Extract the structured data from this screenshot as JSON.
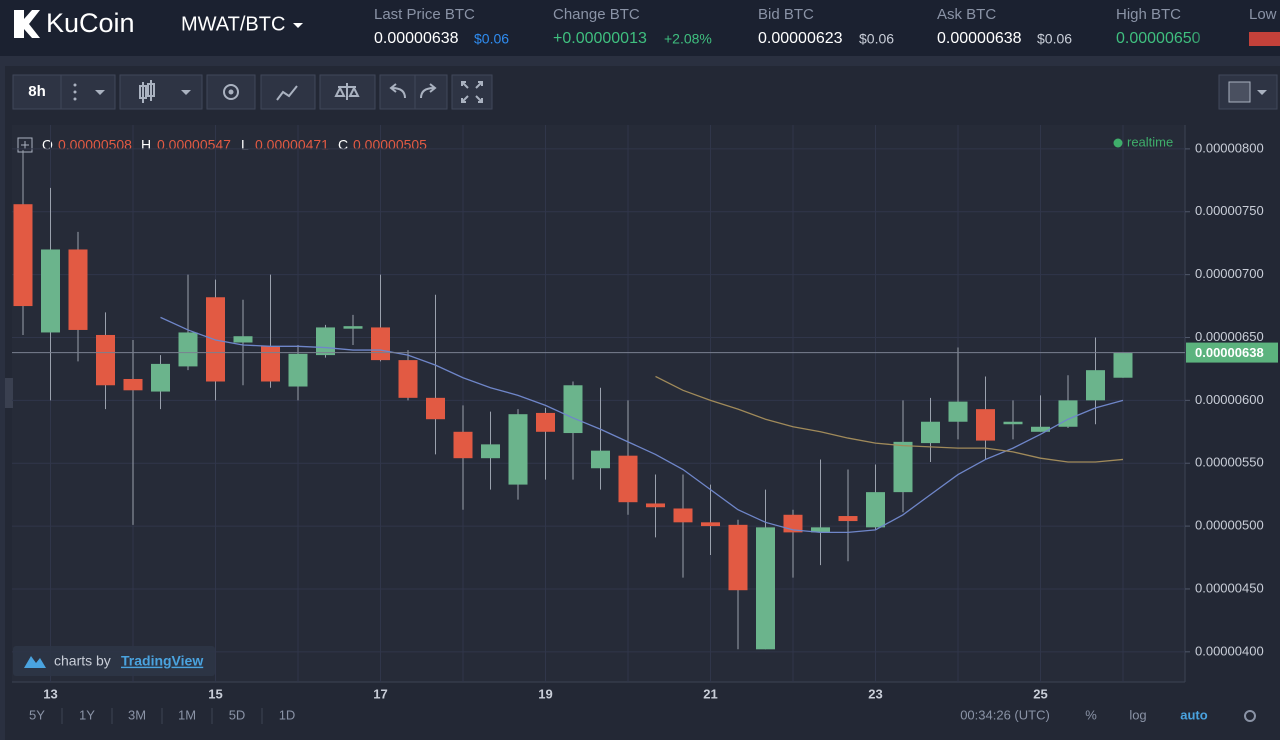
{
  "header": {
    "logo": "KuCoin",
    "pair": "MWAT/BTC",
    "stats": [
      {
        "label": "Last Price BTC",
        "value": "0.00000638",
        "sub": "$0.06"
      },
      {
        "label": "Change BTC",
        "value": "+0.00000013",
        "sub": "+2.08%"
      },
      {
        "label": "Bid BTC",
        "value": "0.00000623",
        "sub": "$0.06"
      },
      {
        "label": "Ask BTC",
        "value": "0.00000638",
        "sub": "$0.06"
      },
      {
        "label": "High BTC",
        "value": "0.00000650"
      },
      {
        "label": "Low"
      }
    ]
  },
  "toolbar": {
    "interval": "8h"
  },
  "legend": {
    "o_label": "O",
    "o": "0.00000508",
    "h_label": "H",
    "h": "0.00000547",
    "l_label": "L",
    "l": "0.00000471",
    "c_label": "C",
    "c": "0.00000505",
    "status": "realtime"
  },
  "branding": {
    "prefix": "charts by",
    "name": "TradingView"
  },
  "bottom_bar": {
    "ranges": [
      "5Y",
      "1Y",
      "3M",
      "1M",
      "5D",
      "1D"
    ],
    "time": "00:34:26 (UTC)",
    "percent": "%",
    "log": "log",
    "auto": "auto"
  },
  "chart_data": {
    "type": "candlestick",
    "x_labels": [
      "13",
      "15",
      "17",
      "19",
      "21",
      "23",
      "25"
    ],
    "open": [
      7.56e-06,
      6.54e-06,
      7.2e-06,
      6.52e-06,
      6.17e-06,
      6.07e-06,
      6.27e-06,
      6.82e-06,
      6.46e-06,
      6.43e-06,
      6.11e-06,
      6.36e-06,
      6.57e-06,
      6.58e-06,
      6.32e-06,
      6.02e-06,
      5.75e-06,
      5.54e-06,
      5.33e-06,
      5.9e-06,
      5.74e-06,
      5.46e-06,
      5.56e-06,
      5.18e-06,
      5.14e-06,
      5.03e-06,
      5.01e-06,
      4.02e-06,
      5.09e-06,
      4.95e-06,
      5.08e-06,
      4.99e-06,
      5.27e-06,
      5.66e-06,
      5.83e-06,
      5.93e-06,
      5.81e-06,
      5.75e-06,
      5.79e-06,
      6e-06,
      6.18e-06
    ],
    "high": [
      7.99e-06,
      7.69e-06,
      7.34e-06,
      6.7e-06,
      6.48e-06,
      6.36e-06,
      7e-06,
      6.96e-06,
      6.8e-06,
      7e-06,
      6.44e-06,
      6.6e-06,
      6.68e-06,
      7e-06,
      6.4e-06,
      6.84e-06,
      5.96e-06,
      5.91e-06,
      5.93e-06,
      5.94e-06,
      6.15e-06,
      6.1e-06,
      6e-06,
      5.41e-06,
      5.41e-06,
      5.33e-06,
      5.05e-06,
      5.29e-06,
      5.13e-06,
      5.53e-06,
      5.45e-06,
      5.49e-06,
      6e-06,
      6.02e-06,
      6.42e-06,
      6.19e-06,
      6e-06,
      6.04e-06,
      6.2e-06,
      6.5e-06,
      6.38e-06
    ],
    "low": [
      6.52e-06,
      6e-06,
      6.31e-06,
      5.93e-06,
      5.01e-06,
      5.93e-06,
      6.24e-06,
      6e-06,
      6.12e-06,
      6.1e-06,
      6e-06,
      6.34e-06,
      6.44e-06,
      6.31e-06,
      6e-06,
      5.57e-06,
      5.13e-06,
      5.29e-06,
      5.21e-06,
      5.37e-06,
      5.37e-06,
      5.29e-06,
      5.09e-06,
      4.91e-06,
      4.59e-06,
      4.77e-06,
      4.02e-06,
      4.02e-06,
      4.59e-06,
      4.69e-06,
      4.72e-06,
      4.97e-06,
      5.11e-06,
      5.51e-06,
      5.69e-06,
      5.53e-06,
      5.69e-06,
      5.75e-06,
      5.78e-06,
      5.81e-06,
      6.18e-06
    ],
    "close": [
      6.75e-06,
      7.2e-06,
      6.56e-06,
      6.12e-06,
      6.08e-06,
      6.29e-06,
      6.54e-06,
      6.15e-06,
      6.51e-06,
      6.15e-06,
      6.37e-06,
      6.58e-06,
      6.59e-06,
      6.32e-06,
      6.02e-06,
      5.85e-06,
      5.54e-06,
      5.65e-06,
      5.89e-06,
      5.75e-06,
      6.12e-06,
      5.6e-06,
      5.19e-06,
      5.15e-06,
      5.03e-06,
      5e-06,
      4.49e-06,
      4.99e-06,
      4.95e-06,
      4.99e-06,
      5.04e-06,
      5.27e-06,
      5.67e-06,
      5.83e-06,
      5.99e-06,
      5.68e-06,
      5.83e-06,
      5.79e-06,
      6e-06,
      6.24e-06,
      6.38e-06
    ],
    "up_color": "#6bb48c",
    "down_color": "#e25a43",
    "lines": [
      {
        "color": "#6f86c9",
        "values": [
          null,
          null,
          null,
          null,
          null,
          6.66e-06,
          6.56e-06,
          6.48e-06,
          6.44e-06,
          6.43e-06,
          6.43e-06,
          6.42e-06,
          6.4e-06,
          6.4e-06,
          6.36e-06,
          6.28e-06,
          6.18e-06,
          6.1e-06,
          6.04e-06,
          5.96e-06,
          5.86e-06,
          5.77e-06,
          5.67e-06,
          5.57e-06,
          5.45e-06,
          5.29e-06,
          5.13e-06,
          5.03e-06,
          4.97e-06,
          4.95e-06,
          4.95e-06,
          4.97e-06,
          5.09e-06,
          5.25e-06,
          5.41e-06,
          5.53e-06,
          5.62e-06,
          5.73e-06,
          5.85e-06,
          5.94e-06,
          6e-06
        ]
      },
      {
        "color": "#a08a5a",
        "values": [
          null,
          null,
          null,
          null,
          null,
          null,
          null,
          null,
          null,
          null,
          null,
          null,
          null,
          null,
          null,
          null,
          null,
          null,
          null,
          null,
          null,
          null,
          null,
          6.19e-06,
          6.08e-06,
          6e-06,
          5.93e-06,
          5.85e-06,
          5.79e-06,
          5.75e-06,
          5.7e-06,
          5.66e-06,
          5.64e-06,
          5.63e-06,
          5.62e-06,
          5.62e-06,
          5.59e-06,
          5.54e-06,
          5.51e-06,
          5.51e-06,
          5.53e-06
        ]
      }
    ],
    "last_price": {
      "value": 6.38e-06,
      "label": "0.00000638",
      "color": "#5cb37e"
    },
    "ylim": [
      3.76e-06,
      8.19e-06
    ],
    "yticks": [
      {
        "value": 8e-06,
        "label": "0.00000800"
      },
      {
        "value": 7.5e-06,
        "label": "0.00000750"
      },
      {
        "value": 7e-06,
        "label": "0.00000700"
      },
      {
        "value": 6.5e-06,
        "label": "0.00000650"
      },
      {
        "value": 6e-06,
        "label": "0.00000600"
      },
      {
        "value": 5.5e-06,
        "label": "0.00000550"
      },
      {
        "value": 5e-06,
        "label": "0.00000500"
      },
      {
        "value": 4.5e-06,
        "label": "0.00000450"
      },
      {
        "value": 4e-06,
        "label": "0.00000400"
      }
    ],
    "grid": true
  }
}
